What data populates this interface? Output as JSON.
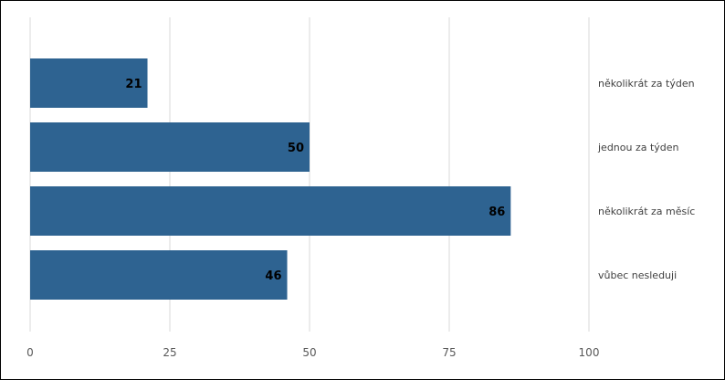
{
  "chart_data": {
    "type": "bar",
    "orientation": "horizontal",
    "categories": [
      "několikrát za týden",
      "jednou za týden",
      "několikrát za měsíc",
      "vůbec nesleduji"
    ],
    "values": [
      21,
      50,
      86,
      46
    ],
    "xlim": [
      0,
      100
    ],
    "x_ticks": [
      "0",
      "25",
      "50",
      "75",
      "100"
    ],
    "grid": "vertical",
    "data_labels": "inside-end",
    "category_labels_position": "right",
    "bar_color": "#2e6391",
    "gridline_color": "#d9d9d9"
  }
}
